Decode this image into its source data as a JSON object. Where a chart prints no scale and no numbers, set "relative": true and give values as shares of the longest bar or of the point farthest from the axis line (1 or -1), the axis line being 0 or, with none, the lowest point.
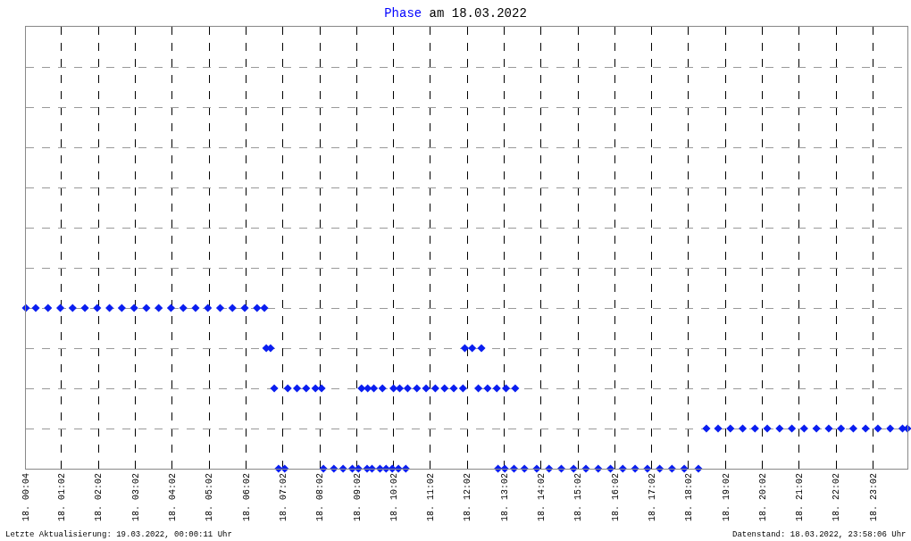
{
  "chart_data": {
    "type": "scatter",
    "title": "Phase am 18.03.2022",
    "relative": true,
    "marker": "diamond",
    "grid": true,
    "color": "#0a1ef0",
    "x": [
      "2022-03-18T00:04",
      "2022-03-18T00:20",
      "2022-03-18T00:40",
      "2022-03-18T01:00",
      "2022-03-18T01:20",
      "2022-03-18T01:40",
      "2022-03-18T02:00",
      "2022-03-18T02:20",
      "2022-03-18T02:40",
      "2022-03-18T03:00",
      "2022-03-18T03:20",
      "2022-03-18T03:40",
      "2022-03-18T04:00",
      "2022-03-18T04:20",
      "2022-03-18T04:40",
      "2022-03-18T05:00",
      "2022-03-18T05:20",
      "2022-03-18T05:40",
      "2022-03-18T06:00",
      "2022-03-18T06:20",
      "2022-03-18T06:32",
      "2022-03-18T06:35",
      "2022-03-18T06:42",
      "2022-03-18T06:48",
      "2022-03-18T06:55",
      "2022-03-18T07:05",
      "2022-03-18T07:10",
      "2022-03-18T07:25",
      "2022-03-18T07:40",
      "2022-03-18T07:55",
      "2022-03-18T08:05",
      "2022-03-18T08:08",
      "2022-03-18T08:25",
      "2022-03-18T08:40",
      "2022-03-18T08:55",
      "2022-03-18T09:05",
      "2022-03-18T09:10",
      "2022-03-18T09:20",
      "2022-03-18T09:30",
      "2022-03-18T09:19",
      "2022-03-18T09:44",
      "2022-03-18T09:27",
      "2022-03-18T09:40",
      "2022-03-18T09:50",
      "2022-03-18T10:00",
      "2022-03-18T10:02",
      "2022-03-18T10:12",
      "2022-03-18T10:10",
      "2022-03-18T10:22",
      "2022-03-18T10:25",
      "2022-03-18T10:40",
      "2022-03-18T10:55",
      "2022-03-18T11:10",
      "2022-03-18T11:25",
      "2022-03-18T11:40",
      "2022-03-18T11:55",
      "2022-03-18T11:58",
      "2022-03-18T12:10",
      "2022-03-18T12:25",
      "2022-03-18T12:20",
      "2022-03-18T12:35",
      "2022-03-18T12:50",
      "2022-03-18T13:05",
      "2022-03-18T13:20",
      "2022-03-18T12:52",
      "2022-03-18T13:03",
      "2022-03-18T13:18",
      "2022-03-18T13:35",
      "2022-03-18T13:55",
      "2022-03-18T14:15",
      "2022-03-18T14:35",
      "2022-03-18T14:55",
      "2022-03-18T15:15",
      "2022-03-18T15:35",
      "2022-03-18T15:55",
      "2022-03-18T16:15",
      "2022-03-18T16:35",
      "2022-03-18T16:55",
      "2022-03-18T17:15",
      "2022-03-18T17:35",
      "2022-03-18T17:55",
      "2022-03-18T18:18",
      "2022-03-18T18:31",
      "2022-03-18T18:50",
      "2022-03-18T19:10",
      "2022-03-18T19:30",
      "2022-03-18T19:50",
      "2022-03-18T20:10",
      "2022-03-18T20:30",
      "2022-03-18T20:50",
      "2022-03-18T21:10",
      "2022-03-18T21:30",
      "2022-03-18T21:50",
      "2022-03-18T22:10",
      "2022-03-18T22:30",
      "2022-03-18T22:50",
      "2022-03-18T23:10",
      "2022-03-18T23:30",
      "2022-03-18T23:50",
      "2022-03-18T23:58"
    ],
    "values": [
      1,
      1,
      1,
      1,
      1,
      1,
      1,
      1,
      1,
      1,
      1,
      1,
      1,
      1,
      1,
      1,
      1,
      1,
      1,
      1,
      1,
      0.75,
      0.75,
      0.5,
      0,
      0,
      0.5,
      0.5,
      0.5,
      0.5,
      0.5,
      0,
      0,
      0,
      0,
      0,
      0.5,
      0.5,
      0.5,
      0,
      0.5,
      0,
      0,
      0,
      0,
      0.5,
      0.5,
      0,
      0,
      0.5,
      0.5,
      0.5,
      0.5,
      0.5,
      0.5,
      0.5,
      0.75,
      0.75,
      0.75,
      0.5,
      0.5,
      0.5,
      0.5,
      0.5,
      0,
      0,
      0,
      0,
      0,
      0,
      0,
      0,
      0,
      0,
      0,
      0,
      0,
      0,
      0,
      0,
      0,
      0,
      0.25,
      0.25,
      0.25,
      0.25,
      0.25,
      0.25,
      0.25,
      0.25,
      0.25,
      0.25,
      0.25,
      0.25,
      0.25,
      0.25,
      0.25,
      0.25,
      0.25,
      0.25
    ],
    "xlim": [
      "2022-03-18T00:04",
      "2022-03-18T23:58"
    ],
    "xticks": [
      {
        "value": "2022-03-18T00:04",
        "label": "18. 00:04"
      },
      {
        "value": "2022-03-18T01:02",
        "label": "18. 01:02"
      },
      {
        "value": "2022-03-18T02:02",
        "label": "18. 02:02"
      },
      {
        "value": "2022-03-18T03:02",
        "label": "18. 03:02"
      },
      {
        "value": "2022-03-18T04:02",
        "label": "18. 04:02"
      },
      {
        "value": "2022-03-18T05:02",
        "label": "18. 05:02"
      },
      {
        "value": "2022-03-18T06:02",
        "label": "18. 06:02"
      },
      {
        "value": "2022-03-18T07:02",
        "label": "18. 07:02"
      },
      {
        "value": "2022-03-18T08:02",
        "label": "18. 08:02"
      },
      {
        "value": "2022-03-18T09:02",
        "label": "18. 09:02"
      },
      {
        "value": "2022-03-18T10:02",
        "label": "18. 10:02"
      },
      {
        "value": "2022-03-18T11:02",
        "label": "18. 11:02"
      },
      {
        "value": "2022-03-18T12:02",
        "label": "18. 12:02"
      },
      {
        "value": "2022-03-18T13:02",
        "label": "18. 13:02"
      },
      {
        "value": "2022-03-18T14:02",
        "label": "18. 14:02"
      },
      {
        "value": "2022-03-18T15:02",
        "label": "18. 15:02"
      },
      {
        "value": "2022-03-18T16:02",
        "label": "18. 16:02"
      },
      {
        "value": "2022-03-18T17:02",
        "label": "18. 17:02"
      },
      {
        "value": "2022-03-18T18:02",
        "label": "18. 18:02"
      },
      {
        "value": "2022-03-18T19:02",
        "label": "18. 19:02"
      },
      {
        "value": "2022-03-18T20:02",
        "label": "18. 20:02"
      },
      {
        "value": "2022-03-18T21:02",
        "label": "18. 21:02"
      },
      {
        "value": "2022-03-18T22:02",
        "label": "18. 22:02"
      },
      {
        "value": "2022-03-18T23:02",
        "label": "18. 23:02"
      }
    ],
    "annotations": [
      "Letzte Aktualisierung: 19.03.2022, 00:00:11 Uhr",
      "Datenstand: 18.03.2022, 23:58:06 Uhr"
    ]
  }
}
